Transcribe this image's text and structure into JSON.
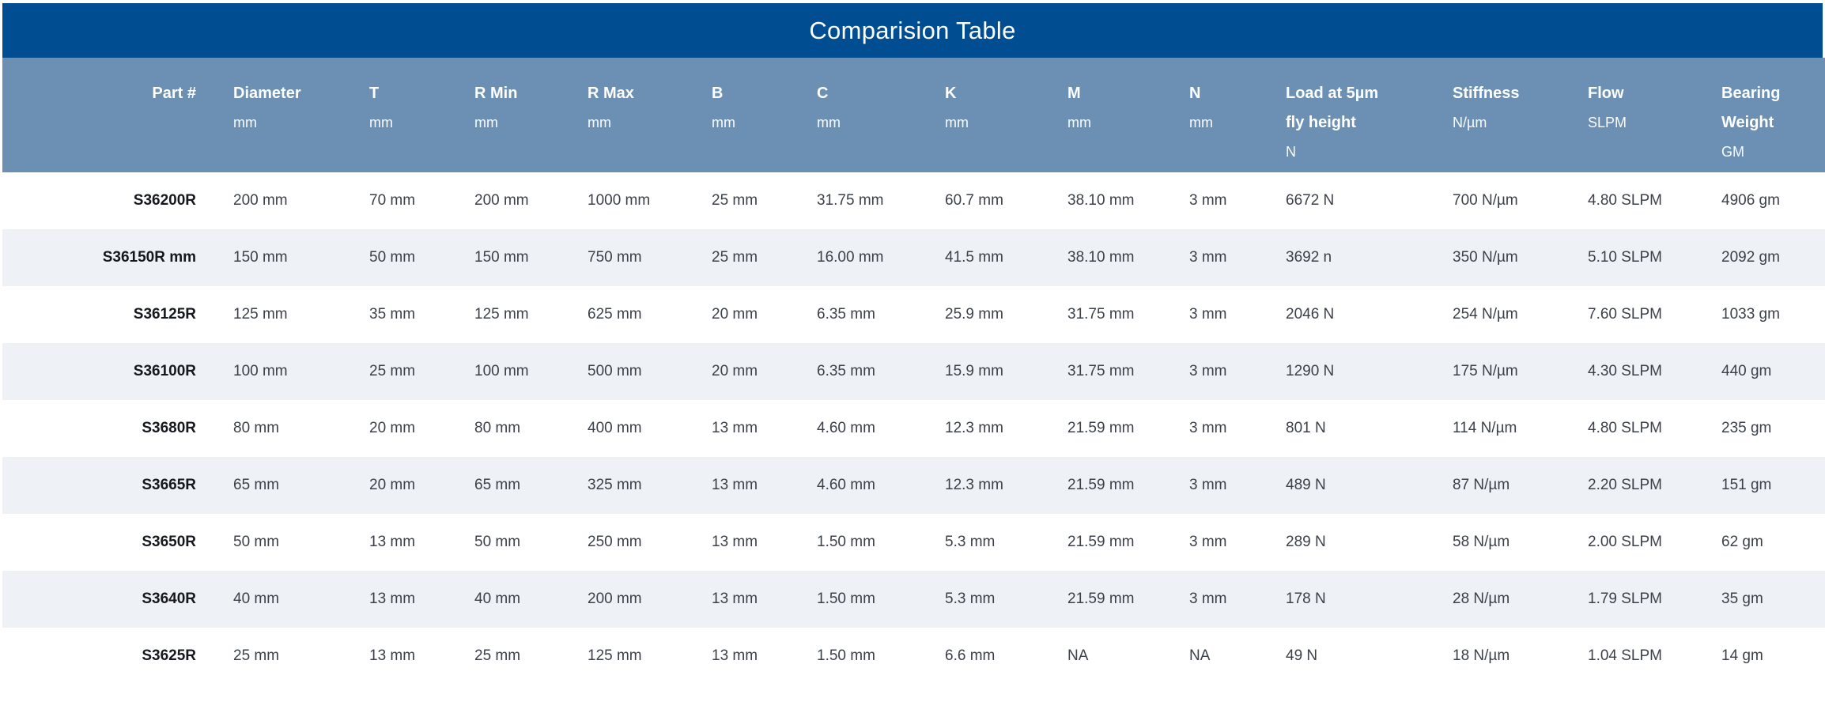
{
  "title": "Comparision Table",
  "colors": {
    "title_bar_bg": "#004E91",
    "header_bg": "#6C90B4",
    "stripe_bg": "#EEF1F6",
    "row_bg": "#FFFFFF",
    "header_text": "#FFFFFF",
    "cell_text": "#3C4149",
    "part_number_text": "#15181D"
  },
  "columns": [
    {
      "id": "part",
      "label": "Part #"
    },
    {
      "id": "diameter",
      "label": "Diameter",
      "unit": "mm"
    },
    {
      "id": "t",
      "label": "T",
      "unit": "mm"
    },
    {
      "id": "r-min",
      "label": "R Min",
      "unit": "mm"
    },
    {
      "id": "r-max",
      "label": "R Max",
      "unit": "mm"
    },
    {
      "id": "b",
      "label": "B",
      "unit": "mm"
    },
    {
      "id": "c",
      "label": "C",
      "unit": "mm"
    },
    {
      "id": "k",
      "label": "K",
      "unit": "mm"
    },
    {
      "id": "m",
      "label": "M",
      "unit": "mm"
    },
    {
      "id": "n",
      "label": "N",
      "unit": "mm"
    },
    {
      "id": "load",
      "label": "Load at 5µm",
      "label2": "fly height",
      "unit": "N"
    },
    {
      "id": "stiffness",
      "label": "Stiffness",
      "unit": "N/µm"
    },
    {
      "id": "flow",
      "label": "Flow",
      "unit": "SLPM"
    },
    {
      "id": "weight",
      "label": "Bearing",
      "label2": "Weight",
      "unit": "GM"
    }
  ],
  "rows": [
    [
      "S36200R",
      "200 mm",
      "70 mm",
      "200 mm",
      "1000 mm",
      "25 mm",
      "31.75 mm",
      "60.7 mm",
      "38.10 mm",
      "3 mm",
      "6672 N",
      "700 N/µm",
      "4.80 SLPM",
      "4906 gm"
    ],
    [
      "S36150R mm",
      "150 mm",
      "50 mm",
      "150 mm",
      "750 mm",
      "25 mm",
      "16.00 mm",
      "41.5 mm",
      "38.10 mm",
      "3 mm",
      "3692 n",
      "350 N/µm",
      "5.10 SLPM",
      "2092 gm"
    ],
    [
      "S36125R",
      "125 mm",
      "35 mm",
      "125 mm",
      "625 mm",
      "20 mm",
      "6.35 mm",
      "25.9 mm",
      "31.75 mm",
      "3 mm",
      "2046 N",
      "254 N/µm",
      "7.60 SLPM",
      "1033 gm"
    ],
    [
      "S36100R",
      "100 mm",
      "25 mm",
      "100 mm",
      "500 mm",
      "20 mm",
      "6.35 mm",
      "15.9 mm",
      "31.75 mm",
      "3 mm",
      "1290 N",
      "175 N/µm",
      "4.30 SLPM",
      "440 gm"
    ],
    [
      "S3680R",
      "80 mm",
      "20 mm",
      "80 mm",
      "400 mm",
      "13 mm",
      "4.60 mm",
      "12.3 mm",
      "21.59 mm",
      "3 mm",
      "801 N",
      "114 N/µm",
      "4.80 SLPM",
      "235 gm"
    ],
    [
      "S3665R",
      "65 mm",
      "20 mm",
      "65 mm",
      "325 mm",
      "13 mm",
      "4.60 mm",
      "12.3 mm",
      "21.59 mm",
      "3 mm",
      "489 N",
      "87 N/µm",
      "2.20 SLPM",
      "151 gm"
    ],
    [
      "S3650R",
      "50 mm",
      "13 mm",
      "50 mm",
      "250 mm",
      "13 mm",
      "1.50 mm",
      "5.3 mm",
      "21.59 mm",
      "3 mm",
      "289 N",
      "58 N/µm",
      "2.00 SLPM",
      "62 gm"
    ],
    [
      "S3640R",
      "40 mm",
      "13 mm",
      "40 mm",
      "200 mm",
      "13 mm",
      "1.50 mm",
      "5.3 mm",
      "21.59 mm",
      "3 mm",
      "178 N",
      "28 N/µm",
      "1.79 SLPM",
      "35 gm"
    ],
    [
      "S3625R",
      "25 mm",
      "13 mm",
      "25 mm",
      "125 mm",
      "13 mm",
      "1.50 mm",
      "6.6 mm",
      "NA",
      "NA",
      "49 N",
      "18 N/µm",
      "1.04 SLPM",
      "14 gm"
    ]
  ]
}
